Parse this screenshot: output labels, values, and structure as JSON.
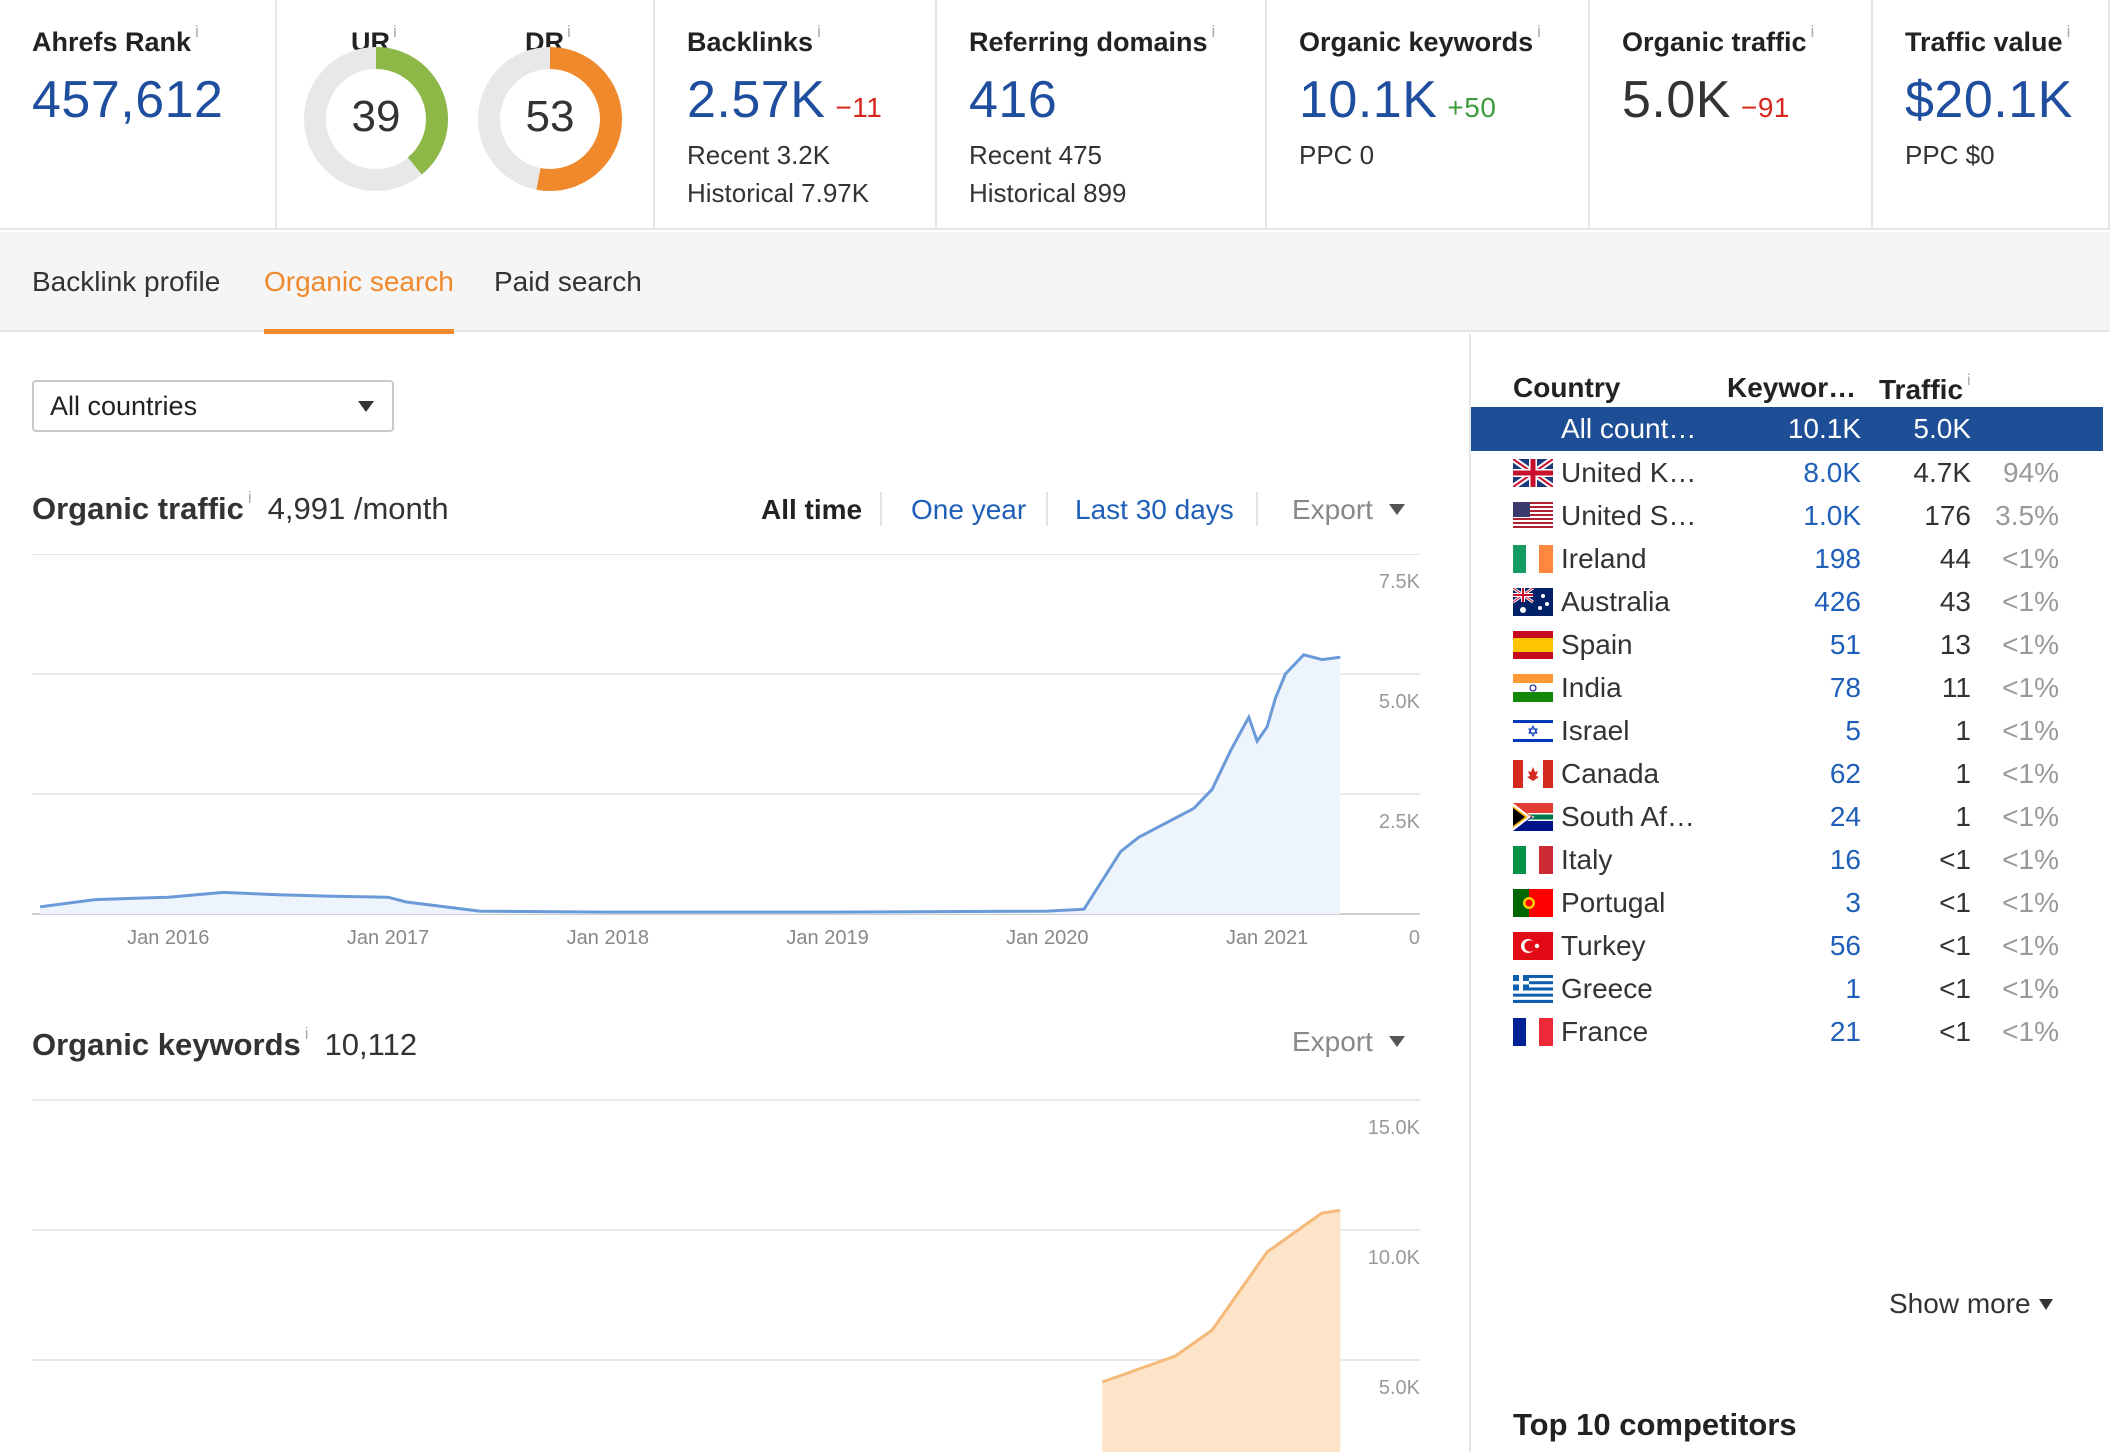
{
  "metrics": {
    "ahrefs_rank": {
      "label": "Ahrefs Rank",
      "value": "457,612"
    },
    "ur": {
      "label": "UR",
      "value": "39",
      "score": 39,
      "color": "#8db848"
    },
    "dr": {
      "label": "DR",
      "value": "53",
      "score": 53,
      "color": "#f0892b"
    },
    "backlinks": {
      "label": "Backlinks",
      "value": "2.57K",
      "delta": "−11",
      "recent": "Recent 3.2K",
      "historical": "Historical 7.97K"
    },
    "referring_domains": {
      "label": "Referring domains",
      "value": "416",
      "recent": "Recent 475",
      "historical": "Historical 899"
    },
    "organic_keywords": {
      "label": "Organic keywords",
      "value": "10.1K",
      "delta": "+50",
      "ppc": "PPC 0"
    },
    "organic_traffic": {
      "label": "Organic traffic",
      "value": "5.0K",
      "delta": "−91"
    },
    "traffic_value": {
      "label": "Traffic value",
      "value": "$20.1K",
      "ppc": "PPC $0"
    },
    "info_icon": "i"
  },
  "tabs": [
    {
      "label": "Backlink profile",
      "active": false
    },
    {
      "label": "Organic search",
      "active": true
    },
    {
      "label": "Paid search",
      "active": false
    }
  ],
  "filter": {
    "country_select": "All countries"
  },
  "traffic_section": {
    "title": "Organic traffic",
    "value": "4,991 /month",
    "ranges": [
      "All time",
      "One year",
      "Last 30 days"
    ],
    "export": "Export"
  },
  "keywords_section": {
    "title": "Organic keywords",
    "value": "10,112",
    "export": "Export"
  },
  "chart_data": [
    {
      "type": "area",
      "x": [
        "2015-06",
        "2015-09",
        "2016-01",
        "2016-04",
        "2016-07",
        "2016-10",
        "2017-01",
        "2017-02",
        "2017-06",
        "2018-01",
        "2019-01",
        "2020-01",
        "2020-03",
        "2020-04",
        "2020-05",
        "2020-06",
        "2020-07",
        "2020-08",
        "2020-09",
        "2020-10",
        "2020-11",
        "2020-12",
        "2020-12-15",
        "2021-01",
        "2021-01-15",
        "2021-02",
        "2021-03",
        "2021-04",
        "2021-05"
      ],
      "y": [
        150,
        300,
        350,
        450,
        400,
        370,
        350,
        250,
        60,
        40,
        40,
        60,
        100,
        700,
        1300,
        1600,
        1800,
        2000,
        2200,
        2600,
        3400,
        4100,
        3600,
        3900,
        4500,
        5000,
        5400,
        5300,
        5350
      ],
      "tick_labels": [
        "Jan 2016",
        "Jan 2017",
        "Jan 2018",
        "Jan 2019",
        "Jan 2020",
        "Jan 2021"
      ],
      "ytick_labels": [
        "7.5K",
        "5.0K",
        "2.5K",
        "0"
      ],
      "ylim": [
        0,
        7500
      ],
      "grid": true,
      "color": "#6a9ad8"
    },
    {
      "type": "area",
      "x": [
        "2020-04",
        "2020-06",
        "2020-08",
        "2020-10",
        "2020-11",
        "2020-12",
        "2021-01",
        "2021-02",
        "2021-03",
        "2021-04",
        "2021-05"
      ],
      "y": [
        4000,
        4500,
        5000,
        6000,
        7000,
        8000,
        9000,
        9500,
        10000,
        10500,
        10600
      ],
      "ytick_labels": [
        "15.0K",
        "10.0K",
        "5.0K"
      ],
      "ylim": [
        0,
        15000
      ],
      "grid": true,
      "color": "#f5b97a"
    }
  ],
  "country_table": {
    "headers": {
      "country": "Country",
      "keywords": "Keywor…",
      "traffic": "Traffic"
    },
    "rows": [
      {
        "flag": "none",
        "name": "All count…",
        "keywords": "10.1K",
        "traffic": "5.0K",
        "pct": "",
        "selected": true
      },
      {
        "flag": "uk-flag",
        "name": "United K…",
        "keywords": "8.0K",
        "traffic": "4.7K",
        "pct": "94%"
      },
      {
        "flag": "us-flag",
        "name": "United S…",
        "keywords": "1.0K",
        "traffic": "176",
        "pct": "3.5%"
      },
      {
        "flag": "ireland-flag",
        "name": "Ireland",
        "keywords": "198",
        "traffic": "44",
        "pct": "<1%"
      },
      {
        "flag": "australia-flag",
        "name": "Australia",
        "keywords": "426",
        "traffic": "43",
        "pct": "<1%"
      },
      {
        "flag": "spain-flag",
        "name": "Spain",
        "keywords": "51",
        "traffic": "13",
        "pct": "<1%"
      },
      {
        "flag": "india-flag",
        "name": "India",
        "keywords": "78",
        "traffic": "11",
        "pct": "<1%"
      },
      {
        "flag": "israel-flag",
        "name": "Israel",
        "keywords": "5",
        "traffic": "1",
        "pct": "<1%"
      },
      {
        "flag": "canada-flag",
        "name": "Canada",
        "keywords": "62",
        "traffic": "1",
        "pct": "<1%"
      },
      {
        "flag": "south-africa-flag",
        "name": "South Af…",
        "keywords": "24",
        "traffic": "1",
        "pct": "<1%"
      },
      {
        "flag": "italy-flag",
        "name": "Italy",
        "keywords": "16",
        "traffic": "<1",
        "pct": "<1%"
      },
      {
        "flag": "portugal-flag",
        "name": "Portugal",
        "keywords": "3",
        "traffic": "<1",
        "pct": "<1%"
      },
      {
        "flag": "turkey-flag",
        "name": "Turkey",
        "keywords": "56",
        "traffic": "<1",
        "pct": "<1%"
      },
      {
        "flag": "greece-flag",
        "name": "Greece",
        "keywords": "1",
        "traffic": "<1",
        "pct": "<1%"
      },
      {
        "flag": "france-flag",
        "name": "France",
        "keywords": "21",
        "traffic": "<1",
        "pct": "<1%"
      }
    ],
    "show_more": "Show more"
  },
  "competitors": {
    "title": "Top 10 competitors"
  }
}
